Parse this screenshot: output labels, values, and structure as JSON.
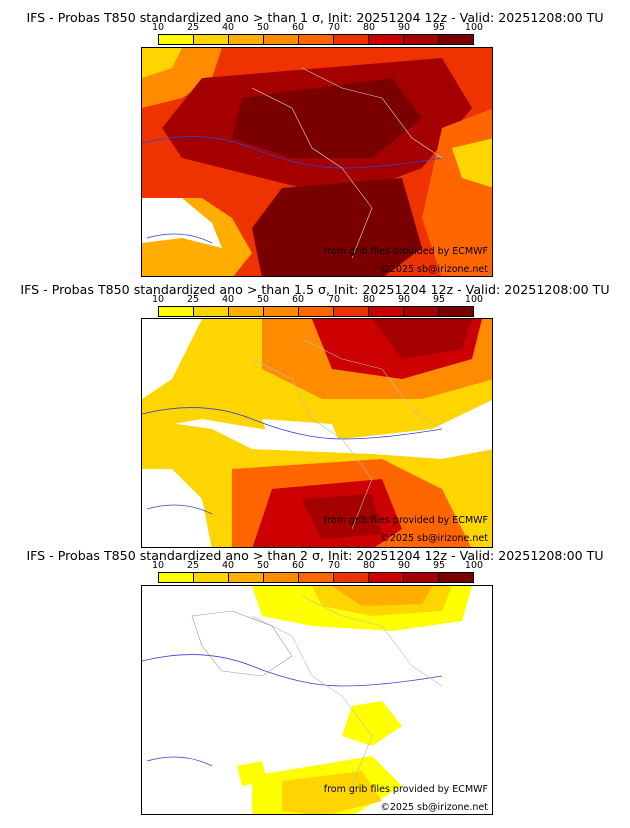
{
  "legend": {
    "ticks": [
      "10",
      "25",
      "40",
      "50",
      "60",
      "70",
      "80",
      "90",
      "95",
      "100"
    ],
    "colors": [
      "#ffff00",
      "#ffd500",
      "#ffae00",
      "#ff8c00",
      "#ff6600",
      "#ee3300",
      "#cc0000",
      "#a50000",
      "#7a0000"
    ]
  },
  "panels": [
    {
      "title": "IFS - Probas T850  standardized ano > than 1 σ, Init: 20251204 12z - Valid: 20251208:00 TU",
      "credit": "from grib files provided by ECMWF",
      "copyright": "©2025 sb@irizone.net"
    },
    {
      "title": "IFS - Probas T850  standardized ano > than 1.5 σ, Init: 20251204 12z - Valid: 20251208:00 TU",
      "credit": "from grib files provided by ECMWF",
      "copyright": "©2025 sb@irizone.net"
    },
    {
      "title": "IFS - Probas T850  standardized ano > than 2 σ, Init: 20251204 12z - Valid: 20251208:00 TU",
      "credit": "from grib files provided by ECMWF",
      "copyright": "©2025 sb@irizone.net"
    }
  ]
}
